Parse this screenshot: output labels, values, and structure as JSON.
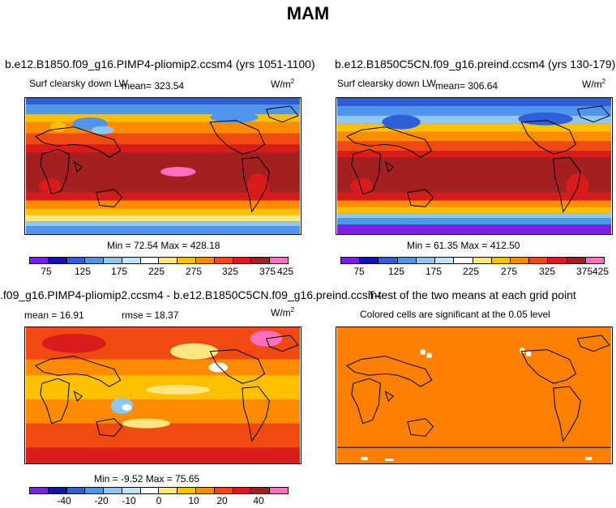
{
  "figure_title": "MAM",
  "panels": {
    "top_left": {
      "title": "b.e12.B1850.f09_g16.PIMP4-pliomip2.ccsm4 (yrs 1051-1100)",
      "variable": "Surf clearsky down LW",
      "mean_label": "mean= 323.54",
      "units": "W/m",
      "units_exp": "2",
      "minmax": "Min =  72.54  Max = 428.18",
      "ticks": [
        "75",
        "125",
        "175",
        "225",
        "275",
        "325",
        "375",
        "425"
      ]
    },
    "top_right": {
      "title": "b.e12.B1850C5CN.f09_g16.preind.ccsm4 (yrs 130-179)",
      "variable": "Surf clearsky down LW",
      "mean_label": "mean= 306.64",
      "units": "W/m",
      "units_exp": "2",
      "minmax": "Min =  61.35  Max = 412.50",
      "ticks": [
        "75",
        "125",
        "175",
        "225",
        "275",
        "325",
        "375",
        "425"
      ]
    },
    "bottom_left": {
      "title": ".f09_g16.PIMP4-pliomip2.ccsm4 - b.e12.B1850C5CN.f09_g16.preind.ccsm4",
      "mean_label": "mean =  16.91",
      "rmse_label": "rmse =  18.37",
      "units": "W/m",
      "units_exp": "2",
      "minmax": "Min =  -9.52  Max =  75.65",
      "ticks": [
        "-40",
        "-20",
        "-10",
        "0",
        "10",
        "20",
        "40"
      ]
    },
    "bottom_right": {
      "title": "T-test of the two means at each grid point",
      "subtitle": "Colored cells are significant at the 0.05 level"
    }
  },
  "colors": {
    "abs_scale": [
      "#7d1fe0",
      "#1414a8",
      "#2f5fd6",
      "#4f95ee",
      "#8ec6f6",
      "#bfe3fb",
      "#ffffff",
      "#ffe680",
      "#ffc000",
      "#ff8c00",
      "#f04a10",
      "#d81b1b",
      "#a32020",
      "#ff6fbf"
    ],
    "diff_scale": [
      "#7d1fe0",
      "#1414a8",
      "#2f5fd6",
      "#4f95ee",
      "#8ec6f6",
      "#bfe3fb",
      "#ffffff",
      "#ffe680",
      "#ffc000",
      "#ff8c00",
      "#f04a10",
      "#d81b1b",
      "#a32020",
      "#ff6fbf"
    ],
    "ttest_fill": "#ff7f00"
  }
}
